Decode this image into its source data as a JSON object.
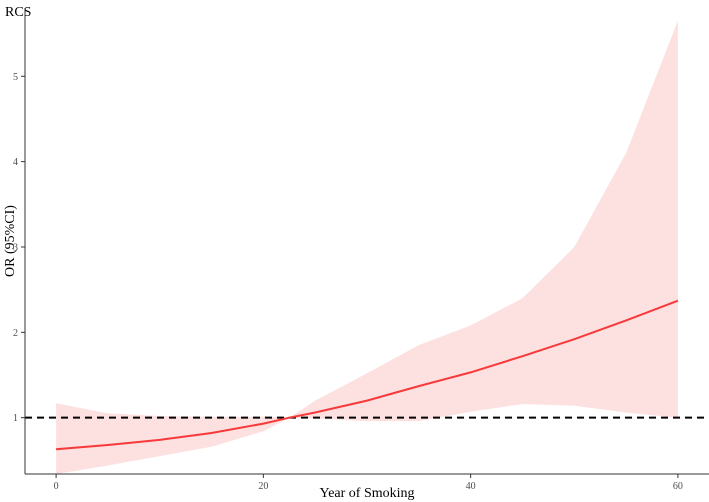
{
  "chart_data": {
    "type": "line",
    "title": "RCS",
    "xlabel": "Year of Smoking",
    "ylabel": "OR (95%CI)",
    "xlim": [
      -3,
      63
    ],
    "ylim": [
      0.34,
      5.8
    ],
    "x_ticks": [
      0,
      20,
      40,
      60
    ],
    "y_ticks": [
      1,
      2,
      3,
      4,
      5
    ],
    "grid": false,
    "reference_line": {
      "y": 1,
      "style": "dashed",
      "color": "#000000"
    },
    "colors": {
      "line": "#f8393a",
      "band": "#fde0e0"
    },
    "series": [
      {
        "x": [
          0,
          5,
          10,
          15,
          20,
          22.5,
          25,
          30,
          35,
          40,
          45,
          50,
          55,
          60
        ],
        "y": [
          0.63,
          0.68,
          0.74,
          0.82,
          0.93,
          1.0,
          1.06,
          1.2,
          1.37,
          1.53,
          1.72,
          1.92,
          2.14,
          2.37
        ],
        "lower": [
          0.34,
          0.44,
          0.55,
          0.66,
          0.84,
          1.0,
          0.99,
          0.96,
          0.96,
          1.07,
          1.16,
          1.14,
          1.06,
          1.0
        ],
        "upper": [
          1.17,
          1.05,
          1.02,
          1.01,
          1.01,
          1.0,
          1.2,
          1.52,
          1.85,
          2.08,
          2.4,
          3.0,
          4.1,
          5.65
        ]
      }
    ]
  }
}
